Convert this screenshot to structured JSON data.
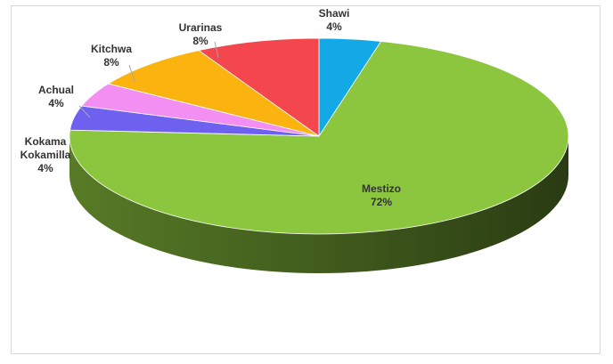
{
  "chart_data": {
    "type": "pie",
    "style": "3d",
    "title": "",
    "legend": "none",
    "slices": [
      {
        "label": "Shawi",
        "value": 4,
        "value_label": "4%",
        "color": "#12a9e6"
      },
      {
        "label": "Mestizo",
        "value": 72,
        "value_label": "72%",
        "color": "#8cc63e"
      },
      {
        "label_lines": [
          "Kokama",
          "Kokamilla"
        ],
        "value": 4,
        "value_label": "4%",
        "color": "#6f61f0"
      },
      {
        "label": "Achual",
        "value": 4,
        "value_label": "4%",
        "color": "#f38ff2"
      },
      {
        "label": "Kitchwa",
        "value": 8,
        "value_label": "8%",
        "color": "#fbb30f"
      },
      {
        "label": "Urarinas",
        "value": 8,
        "value_label": "8%",
        "color": "#f4474d"
      }
    ]
  }
}
